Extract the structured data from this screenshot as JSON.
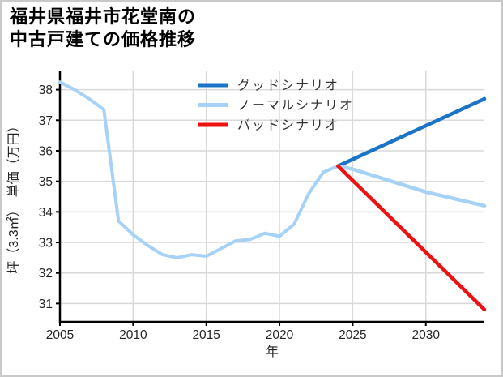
{
  "title": {
    "line1": "福井県福井市花堂南の",
    "line2": "中古戸建ての価格推移"
  },
  "chart_data": {
    "type": "line",
    "title": "福井県福井市花堂南の中古戸建ての価格推移",
    "x_axis": {
      "label": "年",
      "ticks": [
        2005,
        2010,
        2015,
        2020,
        2025,
        2030
      ],
      "range": [
        2005,
        2034
      ]
    },
    "y_axis": {
      "label": "坪（3.3㎡）　単価（万円）",
      "ticks": [
        31,
        32,
        33,
        34,
        35,
        36,
        37,
        38
      ],
      "range": [
        30.4,
        38.6
      ]
    },
    "grid": true,
    "legend_position": "top-center-inside",
    "history": {
      "color": "#a6d2f8",
      "x": [
        2005,
        2006,
        2007,
        2008,
        2009,
        2010,
        2011,
        2012,
        2013,
        2014,
        2015,
        2016,
        2017,
        2018,
        2019,
        2020,
        2021,
        2022,
        2023,
        2024
      ],
      "y": [
        38.25,
        38.0,
        37.7,
        37.35,
        33.7,
        33.25,
        32.9,
        32.6,
        32.5,
        32.6,
        32.55,
        32.8,
        33.05,
        33.1,
        33.3,
        33.2,
        33.6,
        34.6,
        35.3,
        35.5
      ]
    },
    "scenarios": [
      {
        "label": "グッドシナリオ",
        "color": "#1b74c5",
        "x": [
          2024,
          2034
        ],
        "y": [
          35.5,
          37.7
        ]
      },
      {
        "label": "ノーマルシナリオ",
        "color": "#a6d2f8",
        "x": [
          2024,
          2025,
          2030,
          2034
        ],
        "y": [
          35.5,
          35.4,
          34.65,
          34.2
        ]
      },
      {
        "label": "バッドシナリオ",
        "color": "#ee1111",
        "x": [
          2024,
          2034
        ],
        "y": [
          35.5,
          30.8
        ]
      }
    ],
    "colors": {
      "grid": "#d9d9d9",
      "axis": "#000000",
      "tick_text": "#262626"
    }
  }
}
